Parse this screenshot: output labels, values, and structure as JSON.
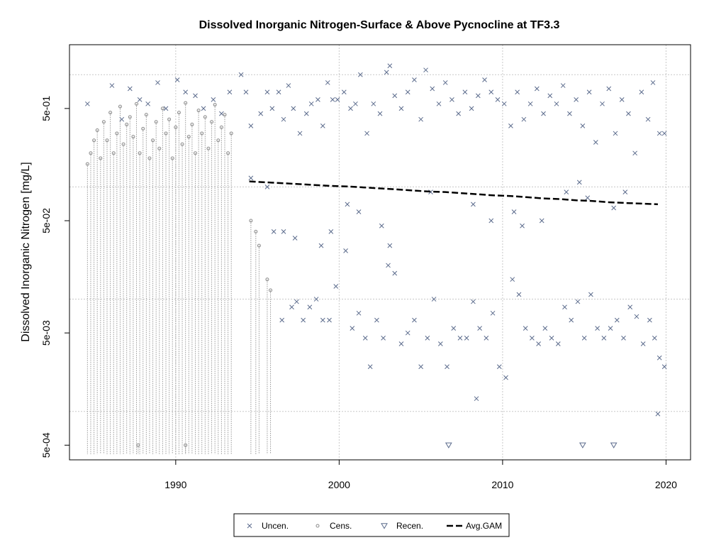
{
  "chart_data": {
    "type": "scatter",
    "title": "Dissolved Inorganic Nitrogen-Surface & Above Pycnocline at TF3.3",
    "xlabel": "",
    "ylabel": "Dissolved Inorganic Nitrogen [mg/L]",
    "y_scale": "log",
    "xlim": [
      1983.5,
      2021.5
    ],
    "ylim": [
      0.00037,
      1.85
    ],
    "x_ticks": [
      {
        "value": 1990,
        "label": "1990"
      },
      {
        "value": 2000,
        "label": "2000"
      },
      {
        "value": 2010,
        "label": "2010"
      },
      {
        "value": 2020,
        "label": "2020"
      }
    ],
    "y_ticks": [
      {
        "value": 0.0005,
        "label": "5e-04"
      },
      {
        "value": 0.005,
        "label": "5e-03"
      },
      {
        "value": 0.05,
        "label": "5e-02"
      },
      {
        "value": 0.5,
        "label": "5e-01"
      }
    ],
    "grid": true,
    "h_gridlines": [
      0.001,
      0.01,
      0.1,
      1.0
    ],
    "v_gridlines": [
      1990,
      2000,
      2010,
      2020
    ],
    "legend_position": "bottom",
    "legend": [
      {
        "symbol": "x",
        "label": "Uncen."
      },
      {
        "symbol": "circle",
        "label": "Cens."
      },
      {
        "symbol": "triangle-down",
        "label": "Recen."
      },
      {
        "symbol": "dashed-line",
        "label": "Avg.GAM"
      }
    ],
    "series": [
      {
        "name": "Uncen.",
        "marker": "x",
        "color": "#5b6b8c",
        "points": [
          [
            1984.6,
            0.55
          ],
          [
            1986.1,
            0.8
          ],
          [
            1986.7,
            0.4
          ],
          [
            1987.2,
            0.75
          ],
          [
            1987.8,
            0.6
          ],
          [
            1988.3,
            0.55
          ],
          [
            1988.9,
            0.85
          ],
          [
            1989.4,
            0.5
          ],
          [
            1990.1,
            0.9
          ],
          [
            1990.6,
            0.7
          ],
          [
            1991.2,
            0.65
          ],
          [
            1991.7,
            0.5
          ],
          [
            1992.3,
            0.6
          ],
          [
            1992.8,
            0.45
          ],
          [
            1993.3,
            0.7
          ],
          [
            1994.0,
            1.0
          ],
          [
            1994.3,
            0.7
          ],
          [
            1994.6,
            0.35
          ],
          [
            1995.2,
            0.45
          ],
          [
            1995.6,
            0.7
          ],
          [
            1995.9,
            0.5
          ],
          [
            1996.3,
            0.7
          ],
          [
            1996.6,
            0.4
          ],
          [
            1996.9,
            0.8
          ],
          [
            1997.2,
            0.5
          ],
          [
            1997.6,
            0.3
          ],
          [
            1998.0,
            0.45
          ],
          [
            1998.3,
            0.55
          ],
          [
            1998.7,
            0.6
          ],
          [
            1999.0,
            0.35
          ],
          [
            1999.3,
            0.85
          ],
          [
            1999.6,
            0.6
          ],
          [
            1999.9,
            0.6
          ],
          [
            2000.3,
            0.7
          ],
          [
            2000.7,
            0.5
          ],
          [
            2001.0,
            0.55
          ],
          [
            2001.3,
            1.0
          ],
          [
            2001.7,
            0.3
          ],
          [
            2002.1,
            0.55
          ],
          [
            2002.5,
            0.45
          ],
          [
            2002.9,
            1.05
          ],
          [
            2003.1,
            1.2
          ],
          [
            2003.4,
            0.65
          ],
          [
            2003.8,
            0.5
          ],
          [
            2004.2,
            0.7
          ],
          [
            2004.6,
            0.9
          ],
          [
            2005.0,
            0.4
          ],
          [
            2005.3,
            1.1
          ],
          [
            2005.7,
            0.75
          ],
          [
            2006.1,
            0.55
          ],
          [
            2006.5,
            0.85
          ],
          [
            2006.9,
            0.6
          ],
          [
            2007.3,
            0.45
          ],
          [
            2007.7,
            0.7
          ],
          [
            2008.1,
            0.5
          ],
          [
            2008.5,
            0.65
          ],
          [
            2008.9,
            0.9
          ],
          [
            2009.3,
            0.7
          ],
          [
            2009.7,
            0.6
          ],
          [
            2010.1,
            0.55
          ],
          [
            2010.5,
            0.35
          ],
          [
            2010.9,
            0.7
          ],
          [
            2011.3,
            0.4
          ],
          [
            2011.7,
            0.55
          ],
          [
            2012.1,
            0.75
          ],
          [
            2012.5,
            0.45
          ],
          [
            2012.9,
            0.65
          ],
          [
            2013.3,
            0.55
          ],
          [
            2013.7,
            0.8
          ],
          [
            2014.1,
            0.45
          ],
          [
            2014.5,
            0.6
          ],
          [
            2014.9,
            0.35
          ],
          [
            2015.3,
            0.7
          ],
          [
            2015.7,
            0.25
          ],
          [
            2016.1,
            0.55
          ],
          [
            2016.5,
            0.75
          ],
          [
            2016.9,
            0.3
          ],
          [
            2017.3,
            0.6
          ],
          [
            2017.7,
            0.45
          ],
          [
            2018.1,
            0.2
          ],
          [
            2018.5,
            0.7
          ],
          [
            2018.9,
            0.4
          ],
          [
            2019.2,
            0.85
          ],
          [
            2019.6,
            0.3
          ],
          [
            2019.9,
            0.3
          ],
          [
            1996.0,
            0.04
          ],
          [
            1996.5,
            0.0065
          ],
          [
            1997.1,
            0.0085
          ],
          [
            1997.4,
            0.0095
          ],
          [
            1997.8,
            0.0065
          ],
          [
            1998.2,
            0.0085
          ],
          [
            1998.6,
            0.01
          ],
          [
            1999.0,
            0.0065
          ],
          [
            1999.4,
            0.0065
          ],
          [
            1999.8,
            0.013
          ],
          [
            2000.4,
            0.027
          ],
          [
            2000.8,
            0.0055
          ],
          [
            2001.2,
            0.0075
          ],
          [
            2001.6,
            0.0045
          ],
          [
            2001.9,
            0.0025
          ],
          [
            2002.3,
            0.0065
          ],
          [
            2002.7,
            0.0045
          ],
          [
            2003.0,
            0.02
          ],
          [
            2003.4,
            0.017
          ],
          [
            2003.8,
            0.004
          ],
          [
            2004.2,
            0.005
          ],
          [
            2004.6,
            0.0065
          ],
          [
            2005.0,
            0.0025
          ],
          [
            2005.4,
            0.0045
          ],
          [
            2005.8,
            0.01
          ],
          [
            2006.2,
            0.004
          ],
          [
            2006.6,
            0.0025
          ],
          [
            2007.0,
            0.0055
          ],
          [
            2007.4,
            0.0045
          ],
          [
            2007.8,
            0.0045
          ],
          [
            2008.2,
            0.0095
          ],
          [
            2008.6,
            0.0055
          ],
          [
            2009.0,
            0.0045
          ],
          [
            2009.4,
            0.0075
          ],
          [
            2009.8,
            0.0025
          ],
          [
            2010.2,
            0.002
          ],
          [
            2010.6,
            0.015
          ],
          [
            2011.0,
            0.011
          ],
          [
            2011.4,
            0.0055
          ],
          [
            2011.8,
            0.0045
          ],
          [
            2012.2,
            0.004
          ],
          [
            2012.6,
            0.0055
          ],
          [
            2013.0,
            0.0045
          ],
          [
            2013.4,
            0.004
          ],
          [
            2013.8,
            0.0085
          ],
          [
            2014.2,
            0.0065
          ],
          [
            2014.6,
            0.0095
          ],
          [
            2015.0,
            0.0045
          ],
          [
            2015.4,
            0.011
          ],
          [
            2015.8,
            0.0055
          ],
          [
            2016.2,
            0.0045
          ],
          [
            2016.6,
            0.0055
          ],
          [
            2017.0,
            0.0065
          ],
          [
            2017.4,
            0.0045
          ],
          [
            2017.8,
            0.0085
          ],
          [
            2018.2,
            0.007
          ],
          [
            2018.6,
            0.004
          ],
          [
            2019.0,
            0.0065
          ],
          [
            2019.3,
            0.0045
          ],
          [
            2019.6,
            0.003
          ],
          [
            2019.9,
            0.0025
          ],
          [
            2008.4,
            0.0013
          ],
          [
            2019.5,
            0.00095
          ],
          [
            1994.6,
            0.12
          ],
          [
            1995.6,
            0.1
          ],
          [
            1996.6,
            0.04
          ],
          [
            1997.3,
            0.035
          ],
          [
            1998.9,
            0.03
          ],
          [
            1999.5,
            0.04
          ],
          [
            2000.5,
            0.07
          ],
          [
            2001.2,
            0.06
          ],
          [
            2002.6,
            0.045
          ],
          [
            2003.1,
            0.03
          ],
          [
            2005.6,
            0.09
          ],
          [
            2008.2,
            0.07
          ],
          [
            2009.3,
            0.05
          ],
          [
            2010.7,
            0.06
          ],
          [
            2011.2,
            0.045
          ],
          [
            2012.4,
            0.05
          ],
          [
            2013.9,
            0.09
          ],
          [
            2014.7,
            0.11
          ],
          [
            2015.2,
            0.08
          ],
          [
            2016.8,
            0.065
          ],
          [
            2017.5,
            0.09
          ]
        ]
      },
      {
        "name": "Cens.",
        "marker": "circle",
        "color": "#8a8a8a",
        "points": [
          [
            1984.6,
            0.16
          ],
          [
            1984.8,
            0.2
          ],
          [
            1985.0,
            0.26
          ],
          [
            1985.2,
            0.32
          ],
          [
            1985.4,
            0.18
          ],
          [
            1985.6,
            0.38
          ],
          [
            1985.8,
            0.26
          ],
          [
            1986.0,
            0.46
          ],
          [
            1986.2,
            0.2
          ],
          [
            1986.4,
            0.3
          ],
          [
            1986.6,
            0.52
          ],
          [
            1986.8,
            0.24
          ],
          [
            1987.0,
            0.36
          ],
          [
            1987.2,
            0.42
          ],
          [
            1987.4,
            0.28
          ],
          [
            1987.6,
            0.55
          ],
          [
            1987.8,
            0.2
          ],
          [
            1988.0,
            0.33
          ],
          [
            1988.2,
            0.44
          ],
          [
            1988.4,
            0.18
          ],
          [
            1988.6,
            0.26
          ],
          [
            1988.8,
            0.38
          ],
          [
            1989.0,
            0.22
          ],
          [
            1989.2,
            0.5
          ],
          [
            1989.4,
            0.3
          ],
          [
            1989.6,
            0.4
          ],
          [
            1989.8,
            0.18
          ],
          [
            1990.0,
            0.34
          ],
          [
            1990.2,
            0.46
          ],
          [
            1990.4,
            0.24
          ],
          [
            1990.6,
            0.56
          ],
          [
            1990.8,
            0.28
          ],
          [
            1991.0,
            0.36
          ],
          [
            1991.2,
            0.2
          ],
          [
            1991.4,
            0.48
          ],
          [
            1991.6,
            0.3
          ],
          [
            1991.8,
            0.42
          ],
          [
            1992.0,
            0.22
          ],
          [
            1992.2,
            0.38
          ],
          [
            1992.4,
            0.54
          ],
          [
            1992.6,
            0.26
          ],
          [
            1992.8,
            0.34
          ],
          [
            1993.0,
            0.44
          ],
          [
            1993.2,
            0.2
          ],
          [
            1993.4,
            0.3
          ],
          [
            1994.6,
            0.05
          ],
          [
            1994.9,
            0.04
          ],
          [
            1995.1,
            0.03
          ],
          [
            1995.6,
            0.015
          ],
          [
            1995.8,
            0.012
          ],
          [
            1987.7,
            0.0005
          ],
          [
            1990.6,
            0.0005
          ]
        ]
      },
      {
        "name": "Recen.",
        "marker": "triangle-down",
        "color": "#5b6b8c",
        "points": [
          [
            2006.7,
            0.0005
          ],
          [
            2014.9,
            0.0005
          ],
          [
            2016.8,
            0.0005
          ]
        ]
      },
      {
        "name": "Avg.GAM",
        "marker": "dashed-line",
        "color": "#000000",
        "points": [
          [
            1994.5,
            0.112
          ],
          [
            1995.5,
            0.11
          ],
          [
            1996.5,
            0.108
          ],
          [
            1997.5,
            0.106
          ],
          [
            1998.5,
            0.104
          ],
          [
            1999.5,
            0.102
          ],
          [
            2000.5,
            0.101
          ],
          [
            2001.5,
            0.099
          ],
          [
            2002.5,
            0.097
          ],
          [
            2003.5,
            0.095
          ],
          [
            2004.5,
            0.093
          ],
          [
            2005.5,
            0.091
          ],
          [
            2006.5,
            0.09
          ],
          [
            2007.5,
            0.088
          ],
          [
            2008.5,
            0.086
          ],
          [
            2009.5,
            0.084
          ],
          [
            2010.5,
            0.083
          ],
          [
            2011.5,
            0.081
          ],
          [
            2012.5,
            0.079
          ],
          [
            2013.5,
            0.078
          ],
          [
            2014.5,
            0.076
          ],
          [
            2015.5,
            0.075
          ],
          [
            2016.5,
            0.073
          ],
          [
            2017.5,
            0.072
          ],
          [
            2018.5,
            0.071
          ],
          [
            2019.5,
            0.07
          ]
        ]
      }
    ]
  }
}
